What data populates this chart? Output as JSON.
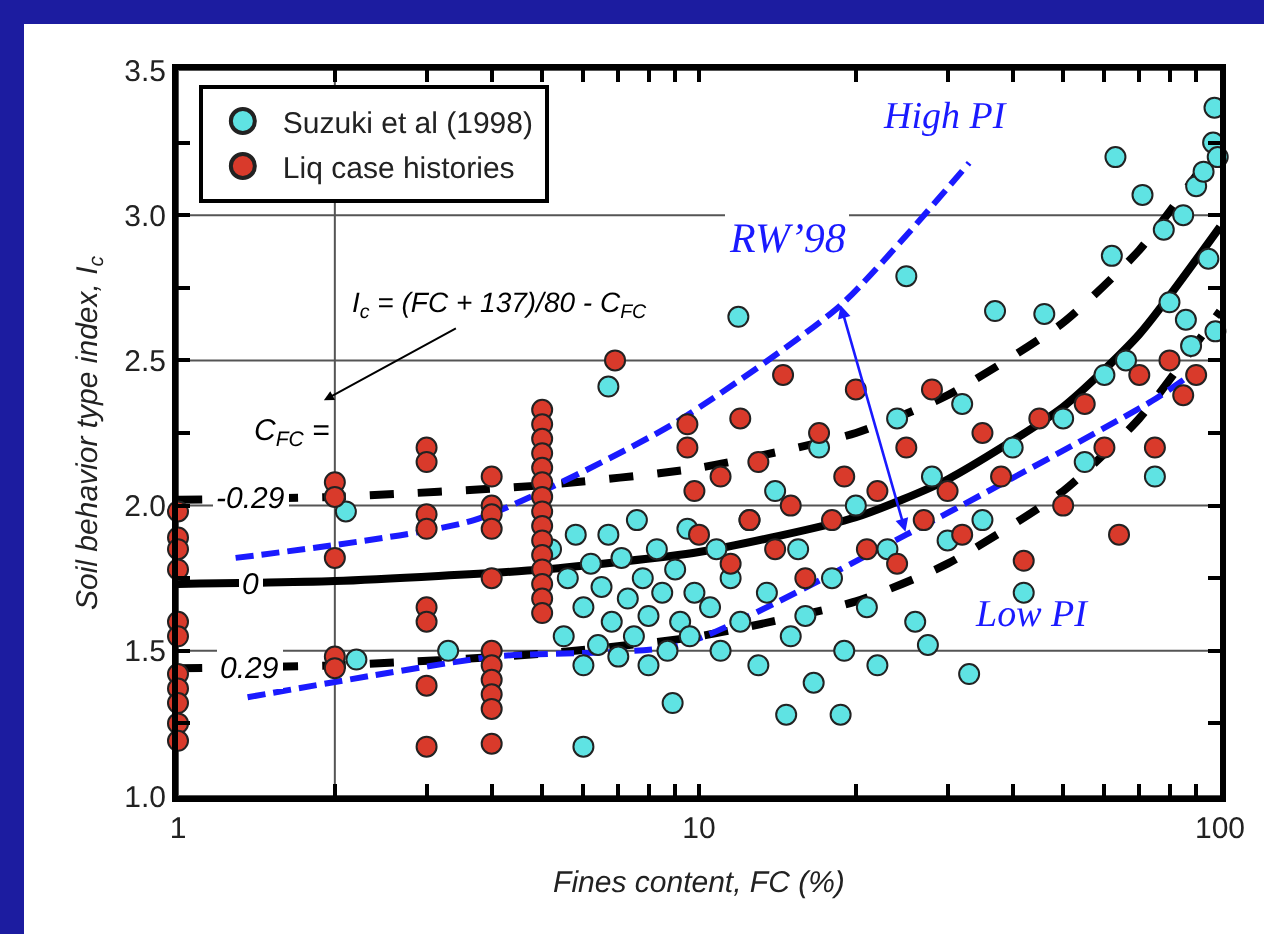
{
  "chart_data": {
    "type": "scatter",
    "xlabel": "Fines content, FC (%)",
    "ylabel": "Soil behavior type index, I$_{c}$",
    "log": "x",
    "grid": true,
    "legend": "top left",
    "marker": "circle",
    "xlim": [
      1,
      100
    ],
    "xticks": [
      1,
      {
        "value": 2,
        "label": null
      },
      {
        "value": 3,
        "label": null
      },
      {
        "value": 4,
        "label": null
      },
      {
        "value": 5,
        "label": null
      },
      {
        "value": 6,
        "label": null
      },
      {
        "value": 7,
        "label": null
      },
      {
        "value": 8,
        "label": null
      },
      {
        "value": 9,
        "label": null
      },
      10,
      {
        "value": 20,
        "label": null
      },
      {
        "value": 30,
        "label": null
      },
      {
        "value": 40,
        "label": null
      },
      {
        "value": 50,
        "label": null
      },
      {
        "value": 60,
        "label": null
      },
      {
        "value": 70,
        "label": null
      },
      {
        "value": 80,
        "label": null
      },
      {
        "value": 90,
        "label": null
      },
      100
    ],
    "ylim": [
      1,
      3.5
    ],
    "yticks": [
      {
        "value": 1,
        "label": "1.0"
      },
      {
        "value": 1.25,
        "label": null
      },
      {
        "value": 1.5,
        "label": "1.5"
      },
      {
        "value": 1.75,
        "label": null
      },
      {
        "value": 2,
        "label": "2.0"
      },
      {
        "value": 2.25,
        "label": null
      },
      {
        "value": 2.5,
        "label": "2.5"
      },
      {
        "value": 2.75,
        "label": null
      },
      {
        "value": 3,
        "label": "3.0"
      },
      {
        "value": 3.25,
        "label": null
      },
      {
        "value": 3.5,
        "label": "3.5"
      }
    ],
    "annotations": [
      "I$_{c}$ = (FC + 137)/80 - C$_{FC}$",
      "C$_{FC}$ =",
      {
        "text": "RW’98",
        "x": 18.7,
        "y": 2.69
      }
    ],
    "series": [
      {
        "name": "Suzuki et al (1998)",
        "color": "#5fe3e3",
        "x": [
          2.1,
          2.2,
          3.3,
          5.2,
          5.5,
          5.6,
          5.8,
          6,
          6,
          6.2,
          6.4,
          6.5,
          6.7,
          6.8,
          7,
          7.1,
          7.3,
          7.5,
          7.6,
          7.8,
          8,
          8,
          8.3,
          8.5,
          8.7,
          8.9,
          9,
          9.2,
          9.5,
          9.6,
          9.8,
          6,
          6.7,
          10.5,
          10.8,
          11,
          11.5,
          11.9,
          12,
          12.5,
          13,
          13.5,
          14,
          14.7,
          15,
          15.5,
          16,
          16.6,
          17,
          18,
          18.7,
          19,
          20,
          21,
          22,
          23,
          24,
          25,
          26,
          27.5,
          28,
          30,
          32,
          33,
          35,
          37,
          40,
          42,
          46,
          50,
          55,
          60,
          62,
          63,
          66,
          71,
          75,
          78,
          80,
          85,
          86,
          88,
          90,
          93,
          95,
          97,
          97.6,
          98,
          99
        ],
        "values": [
          1.98,
          1.47,
          1.5,
          1.85,
          1.55,
          1.75,
          1.9,
          1.65,
          1.45,
          1.8,
          1.52,
          1.72,
          1.9,
          1.6,
          1.48,
          1.82,
          1.68,
          1.55,
          1.95,
          1.75,
          1.45,
          1.62,
          1.85,
          1.7,
          1.5,
          1.32,
          1.78,
          1.6,
          1.92,
          1.55,
          1.7,
          1.17,
          2.41,
          1.65,
          1.85,
          1.5,
          1.75,
          2.65,
          1.6,
          1.95,
          1.45,
          1.7,
          2.05,
          1.28,
          1.55,
          1.85,
          1.62,
          1.39,
          2.2,
          1.75,
          1.28,
          1.5,
          2.0,
          1.65,
          1.45,
          1.85,
          2.3,
          2.79,
          1.6,
          1.52,
          2.1,
          1.88,
          2.35,
          1.42,
          1.95,
          2.67,
          2.2,
          1.7,
          2.66,
          2.3,
          2.15,
          2.45,
          2.86,
          3.2,
          2.5,
          3.07,
          2.1,
          2.95,
          2.7,
          3.0,
          2.64,
          2.55,
          3.1,
          3.15,
          2.85,
          3.25,
          3.37,
          2.6,
          3.2
        ]
      },
      {
        "name": "Liq case histories",
        "color": "#d93a2b",
        "x": [
          1,
          1,
          1,
          1,
          1,
          1,
          1,
          1,
          1,
          1,
          1,
          2,
          2,
          2,
          2,
          2,
          3,
          3,
          3,
          3,
          3,
          3,
          3,
          3,
          4,
          4,
          4,
          4,
          4,
          4,
          4,
          4,
          4,
          4,
          4,
          5,
          5,
          5,
          5,
          5,
          5,
          5,
          5,
          5,
          5,
          5,
          5,
          5,
          5,
          5,
          6.9,
          9.5,
          9.5,
          9.8,
          10,
          11,
          11.5,
          12,
          12.5,
          13,
          14,
          14.5,
          15,
          16,
          17,
          18,
          19,
          20,
          21,
          22,
          24,
          25,
          27,
          28,
          30,
          32,
          35,
          38,
          42,
          45,
          50,
          55,
          60,
          64,
          70,
          75,
          80,
          85,
          90
        ],
        "values": [
          1.98,
          1.89,
          1.85,
          1.78,
          1.6,
          1.55,
          1.42,
          1.37,
          1.32,
          1.25,
          1.19,
          2.08,
          2.03,
          1.82,
          1.48,
          1.44,
          2.2,
          2.15,
          1.97,
          1.92,
          1.65,
          1.6,
          1.38,
          1.17,
          2.1,
          2.0,
          1.97,
          1.92,
          1.75,
          1.5,
          1.45,
          1.4,
          1.35,
          1.3,
          1.18,
          2.33,
          2.28,
          2.23,
          2.18,
          2.13,
          2.08,
          2.03,
          1.98,
          1.93,
          1.88,
          1.83,
          1.78,
          1.73,
          1.68,
          1.63,
          2.5,
          2.28,
          2.2,
          2.05,
          1.9,
          2.1,
          1.8,
          2.3,
          1.95,
          2.15,
          1.85,
          2.45,
          2.0,
          1.75,
          2.25,
          1.95,
          2.1,
          2.4,
          1.85,
          2.05,
          1.8,
          2.2,
          1.95,
          2.4,
          2.05,
          1.9,
          2.25,
          2.1,
          1.81,
          2.3,
          2.0,
          2.35,
          2.2,
          1.9,
          2.45,
          2.2,
          2.5,
          2.38,
          2.45
        ]
      },
      {
        "name": "-0.29",
        "type": "line",
        "color": "#000000",
        "line_style": "dashed",
        "marker": "none",
        "x": [
          1,
          2,
          5,
          10,
          20,
          30,
          50,
          70,
          100
        ],
        "values": [
          2.02,
          2.03,
          2.07,
          2.13,
          2.25,
          2.38,
          2.63,
          2.88,
          3.25
        ]
      },
      {
        "name": "0",
        "type": "line",
        "color": "#000000",
        "line_style": "solid",
        "marker": "none",
        "x": [
          1,
          2,
          5,
          10,
          20,
          30,
          50,
          70,
          100
        ],
        "values": [
          1.73,
          1.74,
          1.78,
          1.84,
          1.96,
          2.09,
          2.34,
          2.59,
          2.96
        ]
      },
      {
        "name": "0.29",
        "type": "line",
        "color": "#000000",
        "line_style": "dashed",
        "marker": "none",
        "x": [
          1,
          2,
          5,
          10,
          20,
          30,
          50,
          70,
          100
        ],
        "values": [
          1.44,
          1.45,
          1.49,
          1.55,
          1.67,
          1.8,
          2.05,
          2.3,
          2.67
        ]
      },
      {
        "name": "High PI",
        "type": "line",
        "color": "#1a1aff",
        "line_style": "dashed",
        "marker": "none",
        "x": [
          1.29,
          3.7,
          8.9,
          18.7,
          33
        ],
        "values": [
          1.82,
          1.95,
          2.28,
          2.69,
          3.18
        ]
      },
      {
        "name": "Low PI",
        "type": "line",
        "color": "#1a1aff",
        "line_style": "dashed",
        "marker": "none",
        "x": [
          1.36,
          4.04,
          9.2,
          25,
          74,
          91
        ],
        "values": [
          1.34,
          1.48,
          1.52,
          1.9,
          2.36,
          2.47
        ]
      }
    ]
  }
}
